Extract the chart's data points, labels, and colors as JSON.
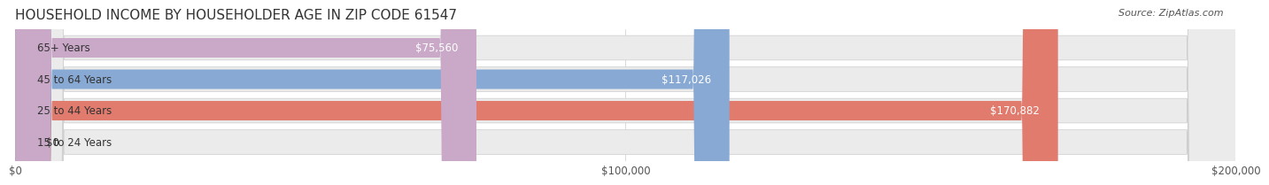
{
  "title": "HOUSEHOLD INCOME BY HOUSEHOLDER AGE IN ZIP CODE 61547",
  "source": "Source: ZipAtlas.com",
  "categories": [
    "15 to 24 Years",
    "25 to 44 Years",
    "45 to 64 Years",
    "65+ Years"
  ],
  "values": [
    0,
    170882,
    117026,
    75560
  ],
  "bar_colors": [
    "#f5c89a",
    "#e07b6e",
    "#87a9d4",
    "#c9a8c8"
  ],
  "bar_edge_colors": [
    "#e8a870",
    "#c95f52",
    "#6b8fbf",
    "#b08eaf"
  ],
  "bg_row_colors": [
    "#f0f0f0",
    "#f0f0f0",
    "#f0f0f0",
    "#f0f0f0"
  ],
  "xlim": [
    0,
    200000
  ],
  "xticks": [
    0,
    100000,
    200000
  ],
  "xtick_labels": [
    "$0",
    "$100,000",
    "$200,000"
  ],
  "value_labels": [
    "$0",
    "$170,882",
    "$117,026",
    "$75,560"
  ],
  "title_fontsize": 11,
  "source_fontsize": 8,
  "label_fontsize": 8.5,
  "tick_fontsize": 8.5,
  "background_color": "#ffffff",
  "bar_bg_color": "#ebebeb"
}
